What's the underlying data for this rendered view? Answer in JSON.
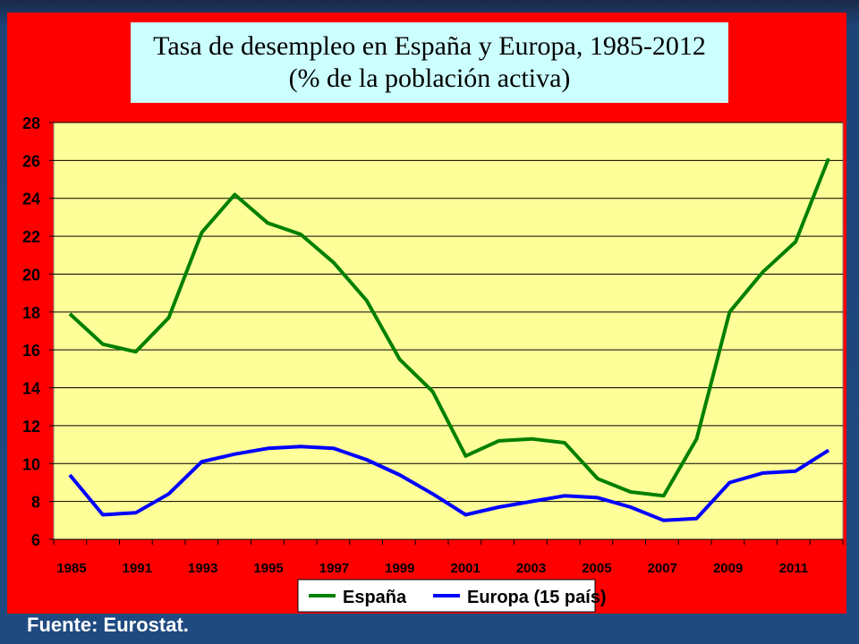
{
  "footer": {
    "source": "Fuente: Eurostat."
  },
  "colors": {
    "background": "#1f4a80",
    "panel": "#ff0000",
    "title_box": "#ccffff",
    "plot": "#ffff99",
    "espana": "#008000",
    "europa": "#0000ff"
  },
  "chart_data": {
    "type": "line",
    "title": "Tasa de desempleo en España y Europa, 1985-2012 (% de la población activa)",
    "xlabel": "",
    "ylabel": "",
    "ylim": [
      6,
      28
    ],
    "yticks": [
      6,
      8,
      10,
      12,
      14,
      16,
      18,
      20,
      22,
      24,
      26,
      28
    ],
    "x_tick_labels": [
      "1985",
      "1991",
      "1993",
      "1995",
      "1997",
      "1999",
      "2001",
      "2003",
      "2005",
      "2007",
      "2009",
      "2011"
    ],
    "grid": true,
    "legend_position": "bottom",
    "series": [
      {
        "name": "España",
        "color": "#008000",
        "values": [
          17.9,
          16.3,
          15.9,
          17.7,
          22.2,
          24.2,
          22.7,
          22.1,
          20.6,
          18.6,
          15.5,
          13.8,
          10.4,
          11.2,
          11.3,
          11.1,
          9.2,
          8.5,
          8.3,
          11.3,
          18.0,
          20.1,
          21.7,
          26.1
        ]
      },
      {
        "name": "Europa (15 país)",
        "color": "#0000ff",
        "values": [
          9.4,
          7.3,
          7.4,
          8.4,
          10.1,
          10.5,
          10.8,
          10.9,
          10.8,
          10.2,
          9.4,
          8.4,
          7.3,
          7.7,
          8.0,
          8.3,
          8.2,
          7.7,
          7.0,
          7.1,
          9.0,
          9.5,
          9.6,
          10.7
        ]
      }
    ]
  }
}
